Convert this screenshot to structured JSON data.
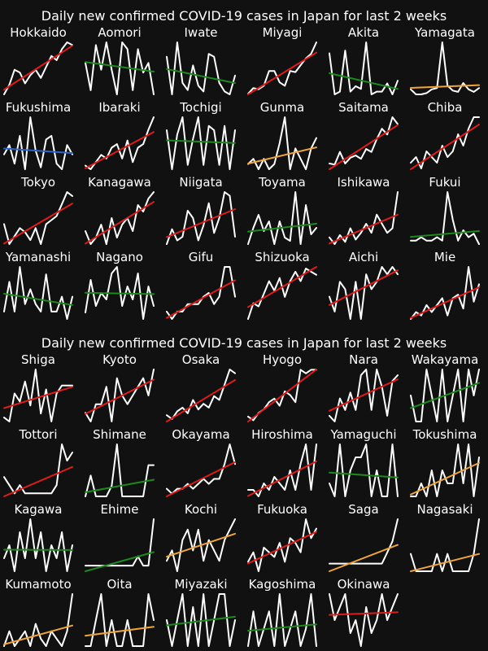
{
  "trend_colors": {
    "up_strong": "#dd1c1c",
    "up_mild": "#f0a43c",
    "flat": "#1d8a1d",
    "down": "#2a65cc"
  },
  "chart_data": [
    {
      "type": "line",
      "title": "Daily new confirmed COVID-19 cases in Japan for last 2 weeks",
      "grid": false,
      "panels": [
        {
          "name": "Hokkaido",
          "trend": "up_strong",
          "values": [
            2,
            9,
            20,
            18,
            10,
            16,
            20,
            14,
            22,
            30,
            27,
            35,
            40,
            38
          ]
        },
        {
          "name": "Aomori",
          "trend": "flat",
          "values": [
            25,
            5,
            38,
            20,
            40,
            20,
            2,
            40,
            35,
            5,
            35,
            18,
            25,
            2
          ]
        },
        {
          "name": "Iwate",
          "trend": "flat",
          "values": [
            28,
            2,
            38,
            10,
            5,
            22,
            8,
            4,
            30,
            28,
            10,
            4,
            2,
            15
          ]
        },
        {
          "name": "Miyagi",
          "trend": "up_strong",
          "values": [
            5,
            10,
            9,
            12,
            25,
            25,
            15,
            12,
            25,
            24,
            30,
            36,
            40,
            50
          ]
        },
        {
          "name": "Akita",
          "trend": "flat",
          "values": [
            32,
            2,
            4,
            34,
            4,
            8,
            6,
            40,
            2,
            4,
            4,
            10,
            2,
            12
          ]
        },
        {
          "name": "Yamagata",
          "trend": "up_mild",
          "values": [
            5,
            1,
            1,
            2,
            5,
            6,
            42,
            8,
            4,
            3,
            10,
            5,
            3,
            6
          ]
        },
        {
          "name": "Fukushima",
          "trend": "down",
          "values": [
            10,
            15,
            5,
            20,
            2,
            30,
            12,
            3,
            18,
            20,
            5,
            2,
            15,
            10
          ]
        },
        {
          "name": "Ibaraki",
          "trend": "up_strong",
          "values": [
            8,
            6,
            10,
            14,
            12,
            18,
            20,
            12,
            22,
            10,
            18,
            20,
            28,
            35
          ]
        },
        {
          "name": "Tochigi",
          "trend": "flat",
          "values": [
            10,
            1,
            9,
            13,
            2,
            8,
            13,
            2,
            11,
            10,
            2,
            11,
            1,
            10
          ]
        },
        {
          "name": "Gunma",
          "trend": "up_mild",
          "values": [
            3,
            4,
            2,
            4,
            2,
            3,
            7,
            12,
            2,
            6,
            4,
            2,
            6,
            8
          ]
        },
        {
          "name": "Saitama",
          "trend": "up_strong",
          "values": [
            20,
            18,
            40,
            20,
            30,
            34,
            28,
            45,
            40,
            62,
            80,
            70,
            100,
            88
          ]
        },
        {
          "name": "Chiba",
          "trend": "up_strong",
          "values": [
            20,
            25,
            15,
            30,
            25,
            20,
            35,
            25,
            30,
            45,
            35,
            50,
            60,
            60
          ]
        },
        {
          "name": "Tokyo",
          "trend": "up_strong",
          "values": [
            150,
            100,
            120,
            140,
            130,
            110,
            140,
            100,
            150,
            160,
            170,
            200,
            230,
            220
          ]
        },
        {
          "name": "Kanagawa",
          "trend": "up_strong",
          "values": [
            30,
            20,
            25,
            35,
            20,
            40,
            25,
            35,
            40,
            30,
            50,
            45,
            55,
            60
          ]
        },
        {
          "name": "Niigata",
          "trend": "up_strong",
          "values": [
            1,
            5,
            2,
            3,
            10,
            8,
            2,
            6,
            12,
            4,
            8,
            15,
            14,
            3
          ]
        },
        {
          "name": "Toyama",
          "trend": "flat",
          "values": [
            0,
            5,
            9,
            4,
            7,
            0,
            7,
            2,
            1,
            16,
            0,
            12,
            3,
            5
          ]
        },
        {
          "name": "Ishikawa",
          "trend": "up_strong",
          "values": [
            4,
            1,
            5,
            2,
            8,
            3,
            6,
            10,
            6,
            14,
            10,
            6,
            8,
            24
          ]
        },
        {
          "name": "Fukui",
          "trend": "flat",
          "values": [
            1,
            1,
            2,
            1,
            1,
            2,
            1,
            15,
            7,
            1,
            4,
            2,
            3,
            0
          ]
        },
        {
          "name": "Yamanashi",
          "trend": "flat",
          "values": [
            1,
            5,
            1,
            7,
            2,
            4,
            2,
            1,
            6,
            1,
            1,
            3,
            0,
            3
          ]
        },
        {
          "name": "Nagano",
          "trend": "flat",
          "values": [
            1,
            6,
            2,
            4,
            3,
            7,
            8,
            2,
            5,
            3,
            7,
            0,
            5,
            2
          ]
        },
        {
          "name": "Gifu",
          "trend": "up_strong",
          "values": [
            2,
            0,
            2,
            2,
            4,
            4,
            4,
            6,
            7,
            4,
            6,
            14,
            14,
            6
          ]
        },
        {
          "name": "Shizuoka",
          "trend": "up_strong",
          "values": [
            0,
            5,
            4,
            8,
            12,
            9,
            13,
            7,
            12,
            15,
            12,
            16,
            15,
            14
          ]
        },
        {
          "name": "Aichi",
          "trend": "up_strong",
          "values": [
            20,
            10,
            30,
            25,
            5,
            30,
            5,
            35,
            25,
            30,
            40,
            35,
            40,
            35
          ]
        },
        {
          "name": "Mie",
          "trend": "up_strong",
          "values": [
            0,
            2,
            1,
            4,
            2,
            4,
            6,
            1,
            6,
            7,
            3,
            15,
            5,
            10
          ]
        }
      ]
    },
    {
      "type": "line",
      "title": "Daily new confirmed COVID-19 cases in Japan for last 2 weeks",
      "grid": false,
      "panels": [
        {
          "name": "Shiga",
          "trend": "up_strong",
          "values": [
            6,
            5,
            12,
            10,
            15,
            9,
            18,
            7,
            13,
            5,
            12,
            14,
            14,
            14
          ]
        },
        {
          "name": "Kyoto",
          "trend": "up_strong",
          "values": [
            10,
            5,
            15,
            15,
            25,
            5,
            30,
            20,
            15,
            20,
            25,
            30,
            20,
            35
          ]
        },
        {
          "name": "Osaka",
          "trend": "up_strong",
          "values": [
            40,
            30,
            50,
            60,
            45,
            80,
            55,
            70,
            60,
            90,
            80,
            120,
            160,
            150
          ]
        },
        {
          "name": "Hyogo",
          "trend": "up_strong",
          "values": [
            15,
            10,
            20,
            25,
            35,
            40,
            30,
            50,
            45,
            35,
            80,
            75,
            80,
            80
          ]
        },
        {
          "name": "Nara",
          "trend": "up_strong",
          "values": [
            2,
            1,
            5,
            3,
            6,
            3,
            9,
            10,
            3,
            10,
            7,
            2,
            8,
            9
          ]
        },
        {
          "name": "Wakayama",
          "trend": "flat",
          "values": [
            1,
            0,
            0,
            2,
            1,
            0,
            2,
            0,
            1,
            2,
            0,
            2,
            1,
            2
          ]
        },
        {
          "name": "Tottori",
          "trend": "up_strong",
          "values": [
            2,
            1,
            0,
            1,
            0,
            0,
            0,
            0,
            0,
            0,
            1,
            6,
            4,
            5
          ]
        },
        {
          "name": "Shimane",
          "trend": "flat",
          "values": [
            0,
            2,
            0,
            0,
            0,
            1,
            5,
            0,
            0,
            0,
            0,
            0,
            3,
            3
          ]
        },
        {
          "name": "Okayama",
          "trend": "up_strong",
          "values": [
            1,
            0,
            1,
            1,
            2,
            1,
            2,
            3,
            2,
            3,
            3,
            6,
            10,
            6
          ]
        },
        {
          "name": "Hiroshima",
          "trend": "up_strong",
          "values": [
            1,
            1,
            0,
            2,
            1,
            3,
            2,
            1,
            4,
            1,
            5,
            8,
            1,
            8
          ]
        },
        {
          "name": "Yamaguchi",
          "trend": "flat",
          "values": [
            1,
            0,
            4,
            0,
            2,
            3,
            3,
            4,
            0,
            2,
            0,
            0,
            4,
            0
          ]
        },
        {
          "name": "Tokushima",
          "trend": "up_mild",
          "values": [
            0,
            0,
            1,
            0,
            2,
            0,
            2,
            1,
            1,
            4,
            1,
            4,
            0,
            3
          ]
        },
        {
          "name": "Kagawa",
          "trend": "flat",
          "values": [
            1,
            2,
            0,
            3,
            1,
            4,
            1,
            3,
            0,
            2,
            1,
            3,
            0,
            2
          ]
        },
        {
          "name": "Ehime",
          "trend": "flat",
          "values": [
            0,
            0,
            0,
            0,
            0,
            0,
            0,
            0,
            0,
            0,
            1,
            0,
            0,
            5
          ]
        },
        {
          "name": "Kochi",
          "trend": "up_mild",
          "values": [
            1,
            2,
            0,
            3,
            4,
            2,
            4,
            1,
            3,
            2,
            1,
            3,
            4,
            5
          ]
        },
        {
          "name": "Fukuoka",
          "trend": "up_strong",
          "values": [
            3,
            5,
            1,
            6,
            5,
            4,
            7,
            3,
            8,
            7,
            5,
            12,
            8,
            10
          ]
        },
        {
          "name": "Saga",
          "trend": "up_mild",
          "values": [
            0,
            0,
            0,
            0,
            0,
            0,
            0,
            0,
            0,
            0,
            0,
            1,
            2,
            4
          ]
        },
        {
          "name": "Nagasaki",
          "trend": "up_mild",
          "values": [
            1,
            0,
            0,
            0,
            0,
            1,
            0,
            1,
            0,
            0,
            0,
            0,
            1,
            3
          ]
        },
        {
          "name": "Kumamoto",
          "trend": "up_mild",
          "values": [
            0,
            2,
            0,
            1,
            2,
            0,
            3,
            1,
            0,
            2,
            1,
            0,
            2,
            7
          ]
        },
        {
          "name": "Oita",
          "trend": "up_mild",
          "values": [
            0,
            0,
            1,
            2,
            0,
            1,
            0,
            0,
            1,
            0,
            0,
            0,
            2,
            1
          ]
        },
        {
          "name": "Miyazaki",
          "trend": "flat",
          "values": [
            2,
            0,
            2,
            4,
            0,
            3,
            0,
            4,
            0,
            2,
            4,
            4,
            0,
            2
          ]
        },
        {
          "name": "Kagoshima",
          "trend": "flat",
          "values": [
            0,
            2,
            0,
            1,
            2,
            0,
            3,
            0,
            1,
            2,
            0,
            1,
            3,
            0
          ]
        },
        {
          "name": "Okinawa",
          "trend": "up_strong",
          "values": [
            4,
            2,
            3,
            4,
            1,
            2,
            0,
            3,
            1,
            2,
            4,
            2,
            3,
            4
          ]
        }
      ]
    }
  ]
}
